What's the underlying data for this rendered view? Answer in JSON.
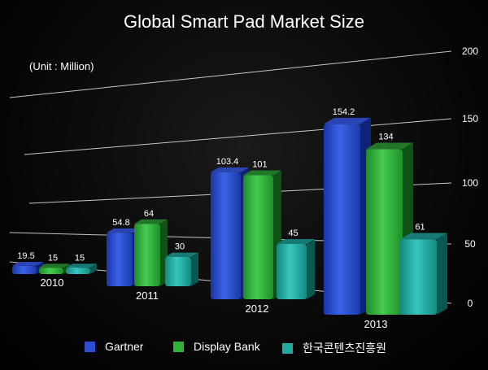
{
  "chart_data": {
    "type": "bar",
    "title": "Global Smart Pad Market Size",
    "unit_note": "(Unit : Million)",
    "categories": [
      "2010",
      "2011",
      "2012",
      "2013"
    ],
    "series": [
      {
        "name": "Gartner",
        "values": [
          19.5,
          54.8,
          103.4,
          154.2
        ],
        "color": "#2b4fd0"
      },
      {
        "name": "Display Bank",
        "values": [
          15,
          64,
          101,
          134
        ],
        "color": "#2fb13a"
      },
      {
        "name": "한국콘텐츠진흥원",
        "values": [
          15,
          30,
          45,
          61
        ],
        "color": "#21a9a1"
      }
    ],
    "value_labels": [
      [
        "19.5",
        "54.8",
        "103.4",
        "154.2"
      ],
      [
        "15",
        "64",
        "101",
        "134"
      ],
      [
        "15",
        "30",
        "45",
        "61"
      ]
    ],
    "y_ticks": [
      "0",
      "50",
      "100",
      "150",
      "200"
    ],
    "ylim": [
      0,
      200
    ],
    "grid": true,
    "legend_position": "bottom"
  }
}
